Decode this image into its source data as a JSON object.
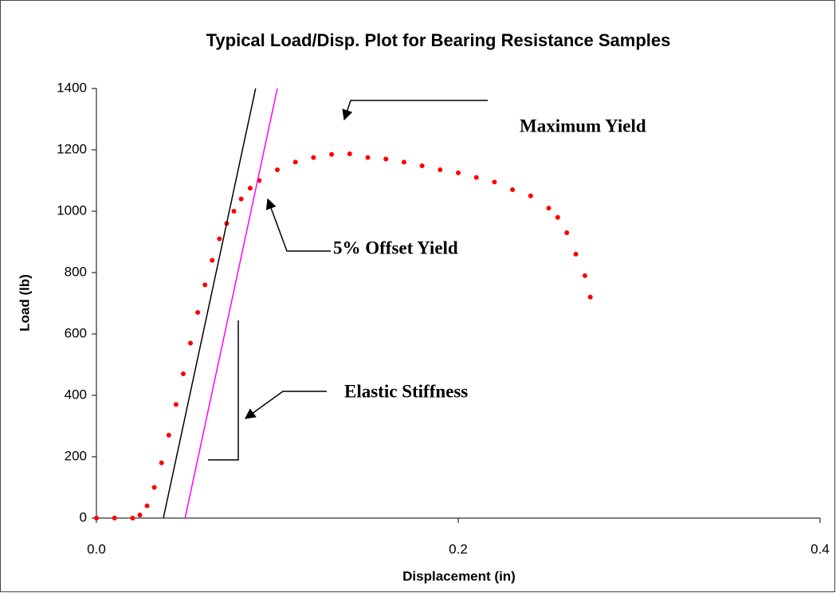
{
  "chart_data": {
    "type": "scatter",
    "title": "Typical Load/Disp. Plot for Bearing Resistance Samples",
    "xlabel": "Displacement (in)",
    "ylabel": "Load (lb)",
    "xlim": [
      0,
      0.4
    ],
    "ylim": [
      0,
      1400
    ],
    "xticks": [
      {
        "value": 0,
        "label": "0.0"
      },
      {
        "value": 0.2,
        "label": "0.2"
      },
      {
        "value": 0.4,
        "label": "0.4"
      }
    ],
    "yticks": [
      0,
      200,
      400,
      600,
      800,
      1000,
      1200,
      1400
    ],
    "grid": false,
    "series": [
      {
        "type": "scatter",
        "color": "#ff0000",
        "x": [
          0,
          0.01,
          0.02,
          0.024,
          0.028,
          0.032,
          0.036,
          0.04,
          0.044,
          0.048,
          0.052,
          0.056,
          0.06,
          0.064,
          0.068,
          0.072,
          0.076,
          0.08,
          0.085,
          0.09,
          0.1,
          0.11,
          0.12,
          0.13,
          0.14,
          0.15,
          0.16,
          0.17,
          0.18,
          0.19,
          0.2,
          0.21,
          0.22,
          0.23,
          0.24,
          0.25,
          0.255,
          0.26,
          0.265,
          0.27,
          0.273
        ],
        "values": [
          0,
          0,
          0,
          10,
          40,
          100,
          180,
          270,
          370,
          470,
          570,
          670,
          760,
          840,
          910,
          960,
          1000,
          1040,
          1075,
          1100,
          1135,
          1160,
          1175,
          1185,
          1187,
          1175,
          1170,
          1160,
          1148,
          1135,
          1125,
          1110,
          1095,
          1070,
          1050,
          1010,
          980,
          930,
          860,
          790,
          720
        ]
      },
      {
        "type": "line",
        "color": "#000000",
        "x": [
          0.037,
          0.088
        ],
        "values": [
          0,
          1400
        ]
      },
      {
        "type": "line",
        "color": "#ff00ff",
        "x": [
          0.049,
          0.1
        ],
        "values": [
          0,
          1400
        ]
      }
    ],
    "annotations": [
      "Maximum Yield",
      "5% Offset Yield",
      "Elastic Stiffness"
    ]
  }
}
